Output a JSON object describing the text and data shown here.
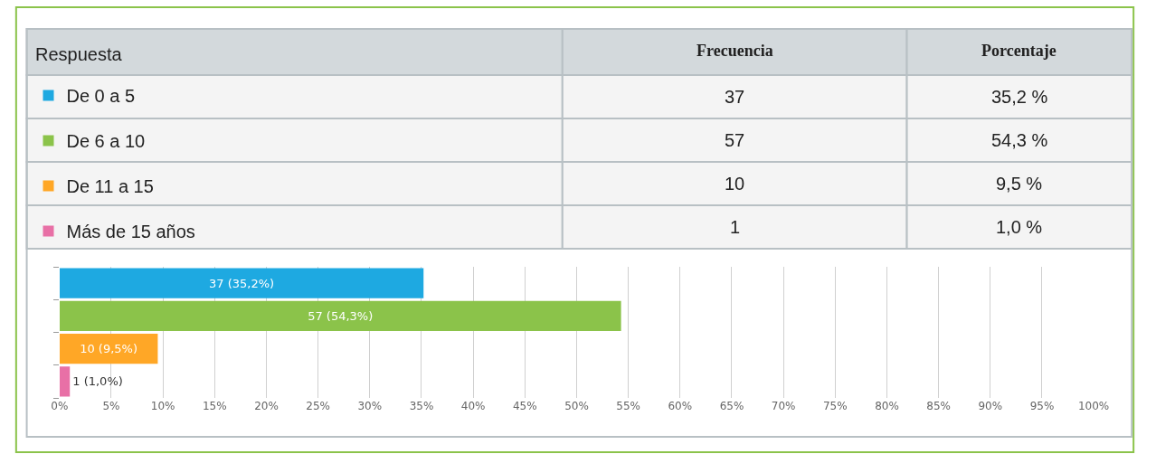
{
  "chart_data": {
    "type": "bar",
    "orientation": "horizontal",
    "categories": [
      null,
      null,
      null,
      null
    ],
    "series": [
      {
        "name": "De 0 a 5",
        "color": "#1ea9e1",
        "values": [
          35.2,
          null,
          null,
          null
        ],
        "value_labels": [
          "37 (35,2%)",
          null,
          null,
          null
        ]
      },
      {
        "name": "De 6 a 10",
        "color": "#8bc34a",
        "values": [
          null,
          54.3,
          null,
          null
        ],
        "value_labels": [
          null,
          "57 (54,3%)",
          null,
          null
        ]
      },
      {
        "name": "De 11 a 15",
        "color": "#ffa726",
        "values": [
          null,
          null,
          9.5,
          null
        ],
        "value_labels": [
          null,
          null,
          "10 (9,5%)",
          null
        ]
      },
      {
        "name": "Más de 15 años",
        "color": "#e870a6",
        "values": [
          null,
          null,
          null,
          1.0
        ],
        "value_labels": [
          null,
          null,
          null,
          "1 (1,0%)"
        ]
      }
    ],
    "legend": "top left",
    "annotations": [
      "Respuesta",
      "Frecuencia",
      "Porcentaje",
      "37",
      "35,2 %",
      "57",
      "54,3 %",
      "10",
      "9,5 %",
      "1",
      "1,0 %"
    ],
    "xlim": [
      0,
      100
    ],
    "xticks": [
      {
        "value": 0,
        "label": "0%"
      },
      {
        "value": 5,
        "label": "5%"
      },
      {
        "value": 10,
        "label": "10%"
      },
      {
        "value": 15,
        "label": "15%"
      },
      {
        "value": 20,
        "label": "20%"
      },
      {
        "value": 25,
        "label": "25%"
      },
      {
        "value": 30,
        "label": "30%"
      },
      {
        "value": 35,
        "label": "35%"
      },
      {
        "value": 40,
        "label": "40%"
      },
      {
        "value": 45,
        "label": "45%"
      },
      {
        "value": 50,
        "label": "50%"
      },
      {
        "value": 55,
        "label": "55%"
      },
      {
        "value": 60,
        "label": "60%"
      },
      {
        "value": 65,
        "label": "65%"
      },
      {
        "value": 70,
        "label": "70%"
      },
      {
        "value": 75,
        "label": "75%"
      },
      {
        "value": 80,
        "label": "80%"
      },
      {
        "value": 85,
        "label": "85%"
      },
      {
        "value": 90,
        "label": "90%"
      },
      {
        "value": 95,
        "label": "95%"
      },
      {
        "value": 100,
        "label": "100%"
      }
    ],
    "grid": "x",
    "tick_labels": "x"
  }
}
